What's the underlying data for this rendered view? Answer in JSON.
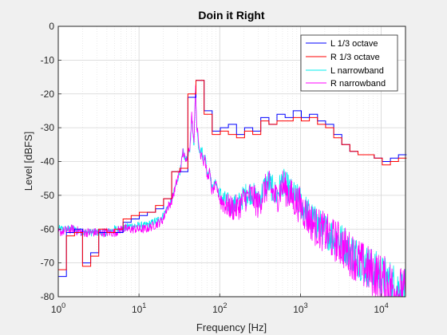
{
  "chart_data": {
    "type": "line",
    "title": "Doin it Right",
    "xlabel": "Frequency [Hz]",
    "ylabel": "Level [dBFS]",
    "xscale": "log",
    "xlim": [
      1,
      20000
    ],
    "ylim": [
      -80,
      0
    ],
    "grid": true,
    "minor_grid_x": true,
    "legend_position": "top-right",
    "x_ticks": [
      {
        "value": 1,
        "base": "10",
        "exp": "0"
      },
      {
        "value": 10,
        "base": "10",
        "exp": "1"
      },
      {
        "value": 100,
        "base": "10",
        "exp": "2"
      },
      {
        "value": 1000,
        "base": "10",
        "exp": "3"
      },
      {
        "value": 10000,
        "base": "10",
        "exp": "4"
      }
    ],
    "y_ticks": [
      {
        "value": 0,
        "label": "0"
      },
      {
        "value": -10,
        "label": "-10"
      },
      {
        "value": -20,
        "label": "-20"
      },
      {
        "value": -30,
        "label": "-30"
      },
      {
        "value": -40,
        "label": "-40"
      },
      {
        "value": -50,
        "label": "-50"
      },
      {
        "value": -60,
        "label": "-60"
      },
      {
        "value": -70,
        "label": "-70"
      },
      {
        "value": -80,
        "label": "-80"
      }
    ],
    "series": [
      {
        "name": "L 1/3 octave",
        "color": "#0000ff",
        "style": "step",
        "x": [
          1.0,
          1.26,
          1.59,
          2.0,
          2.52,
          3.17,
          4.0,
          5.04,
          6.35,
          8.0,
          10.08,
          12.7,
          16.0,
          20.16,
          25.4,
          32.0,
          40.3,
          50.8,
          64.0,
          80.6,
          101.6,
          128.0,
          161.3,
          203.2,
          256.0,
          322.5,
          406.4,
          512.0,
          645.1,
          812.7,
          1024.0,
          1290.2,
          1625.5,
          2048.0,
          2580.3,
          3251.0,
          4096.0,
          5160.6,
          6502.0,
          8192.0,
          10321.3,
          13004.0,
          16384.0
        ],
        "y": [
          -74,
          -61,
          -60,
          -70,
          -67,
          -61,
          -61,
          -61,
          -58,
          -57,
          -56,
          -55,
          -54,
          -51,
          -43,
          -43,
          -21,
          -16,
          -25,
          -31,
          -30,
          -29,
          -32,
          -30,
          -31,
          -27,
          -29,
          -26,
          -27,
          -25,
          -27,
          -26,
          -28,
          -29,
          -32,
          -35,
          -37,
          -38,
          -38,
          -39,
          -40,
          -39,
          -38
        ]
      },
      {
        "name": "R 1/3 octave",
        "color": "#ff0000",
        "style": "step",
        "x": [
          1.0,
          1.26,
          1.59,
          2.0,
          2.52,
          3.17,
          4.0,
          5.04,
          6.35,
          8.0,
          10.08,
          12.7,
          16.0,
          20.16,
          25.4,
          32.0,
          40.3,
          50.8,
          64.0,
          80.6,
          101.6,
          128.0,
          161.3,
          203.2,
          256.0,
          322.5,
          406.4,
          512.0,
          645.1,
          812.7,
          1024.0,
          1290.2,
          1625.5,
          2048.0,
          2580.3,
          3251.0,
          4096.0,
          5160.6,
          6502.0,
          8192.0,
          10321.3,
          13004.0,
          16384.0
        ],
        "y": [
          -72,
          -62,
          -61,
          -71,
          -68,
          -60,
          -61,
          -60,
          -57,
          -56,
          -55,
          -55,
          -53,
          -51,
          -43,
          -42,
          -20,
          -16,
          -26,
          -32,
          -31,
          -32,
          -33,
          -31,
          -32,
          -28,
          -29,
          -28,
          -28,
          -27,
          -28,
          -27,
          -29,
          -30,
          -33,
          -35,
          -37,
          -38,
          -38,
          -39,
          -41,
          -40,
          -39
        ]
      },
      {
        "name": "L narrowband",
        "color": "#00eeee",
        "style": "noisy",
        "x": [
          1,
          1.5,
          2,
          3,
          4,
          5,
          6,
          8,
          10,
          12,
          15,
          18,
          20,
          22,
          25,
          28,
          30,
          33,
          35,
          38,
          40,
          43,
          45,
          48,
          50,
          52,
          55,
          58,
          60,
          63,
          65,
          70,
          75,
          80,
          90,
          100,
          120,
          150,
          180,
          200,
          250,
          300,
          350,
          400,
          500,
          600,
          700,
          800,
          1000,
          1200,
          1500,
          2000,
          2500,
          3000,
          4000,
          5000,
          6000,
          8000,
          10000,
          12000,
          15000,
          20000
        ],
        "y": [
          -60,
          -60,
          -61,
          -61,
          -61,
          -60,
          -60,
          -59,
          -59,
          -59,
          -58,
          -57,
          -56,
          -54,
          -52,
          -48,
          -45,
          -42,
          -37,
          -40,
          -38,
          -36,
          -27,
          -35,
          -18,
          -30,
          -36,
          -37,
          -36,
          -40,
          -37,
          -44,
          -42,
          -48,
          -46,
          -50,
          -52,
          -53,
          -52,
          -50,
          -49,
          -52,
          -48,
          -46,
          -50,
          -46,
          -48,
          -50,
          -52,
          -55,
          -58,
          -60,
          -62,
          -63,
          -66,
          -68,
          -70,
          -72,
          -74,
          -75,
          -77,
          -79
        ],
        "amplitude": 3
      },
      {
        "name": "R narrowband",
        "color": "#ff00ff",
        "style": "noisy",
        "x": [
          1,
          1.5,
          2,
          3,
          4,
          5,
          6,
          8,
          10,
          12,
          15,
          18,
          20,
          22,
          25,
          28,
          30,
          33,
          35,
          38,
          40,
          43,
          45,
          48,
          50,
          52,
          55,
          58,
          60,
          63,
          65,
          70,
          75,
          80,
          90,
          100,
          120,
          150,
          180,
          200,
          250,
          300,
          350,
          400,
          500,
          600,
          700,
          800,
          1000,
          1200,
          1500,
          2000,
          2500,
          3000,
          4000,
          5000,
          6000,
          8000,
          10000,
          12000,
          15000,
          20000
        ],
        "y": [
          -61,
          -60,
          -61,
          -61,
          -61,
          -61,
          -60,
          -60,
          -60,
          -60,
          -59,
          -58,
          -57,
          -54,
          -52,
          -48,
          -45,
          -42,
          -37,
          -40,
          -37,
          -35,
          -26,
          -34,
          -17,
          -29,
          -35,
          -38,
          -37,
          -41,
          -38,
          -45,
          -43,
          -49,
          -47,
          -51,
          -53,
          -54,
          -53,
          -51,
          -50,
          -53,
          -49,
          -47,
          -51,
          -47,
          -49,
          -51,
          -53,
          -56,
          -59,
          -61,
          -63,
          -64,
          -67,
          -69,
          -71,
          -73,
          -75,
          -76,
          -78,
          -80
        ],
        "amplitude": 3.5
      }
    ]
  }
}
